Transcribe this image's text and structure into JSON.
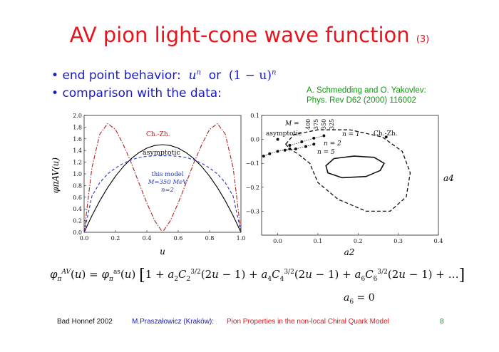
{
  "slide": {
    "title": "AV pion light-cone wave function",
    "title_number": "(3)",
    "bullet1_text": "end point behavior:",
    "bullet1_formula_a": "u",
    "bullet1_formula_a_exp": "n",
    "bullet1_or": "or",
    "bullet1_formula_b": "(1 − u)",
    "bullet1_formula_b_exp": "n",
    "bullet2_text": "comparison with the data:",
    "reference_line1": "A. Schmedding and O. Yakovlev:",
    "reference_line2": "Phys. Rev D62 (2000) 116002",
    "formula": "φπAV(u) = φπas(u) [1 + a2C2^(3/2)(2u − 1) + a4C4^(3/2)(2u − 1) + a6C6^(3/2)(2u − 1) + …]",
    "formula_note": "a6 = 0",
    "colors": {
      "title": "#e8141b",
      "bullets": "#1919c8",
      "reference": "#119911",
      "footer_middle": "#1919c8",
      "footer_right": "#e8141b"
    }
  },
  "footer": {
    "left": "Bad Honnef 2002",
    "author": "M.Praszałowicz (Kraków):",
    "talk": "Pion Properties in the non-local Chiral Quark Model",
    "page": "8"
  },
  "chart_data": [
    {
      "type": "line",
      "xlabel": "u",
      "ylabel": "φπAV(u)",
      "xlim": [
        0,
        1
      ],
      "ylim": [
        0,
        2
      ],
      "xticks": [
        "0.0",
        "0.2",
        "0.4",
        "0.6",
        "0.8",
        "1.0"
      ],
      "yticks": [
        "0.0",
        "0.2",
        "0.4",
        "0.6",
        "0.8",
        "1.0",
        "1.2",
        "1.4",
        "1.6",
        "1.8",
        "2.0"
      ],
      "series": [
        {
          "name": "asymptotic",
          "style": "solid",
          "color": "#000000"
        },
        {
          "name": "Ch.-Zh.",
          "style": "dash-dot",
          "color": "#b02020"
        },
        {
          "name": "this model",
          "style": "dashed",
          "color": "#2233bb"
        }
      ],
      "model_label": {
        "line1": "this model",
        "line2": "M=350 MeV",
        "line3": "n=2"
      },
      "x": [
        0,
        0.05,
        0.1,
        0.15,
        0.2,
        0.25,
        0.3,
        0.35,
        0.4,
        0.45,
        0.5,
        0.55,
        0.6,
        0.65,
        0.7,
        0.75,
        0.8,
        0.85,
        0.9,
        0.95,
        1
      ],
      "series_values": {
        "asymptotic": [
          0,
          0.285,
          0.54,
          0.765,
          0.96,
          1.125,
          1.26,
          1.365,
          1.44,
          1.485,
          1.5,
          1.485,
          1.44,
          1.365,
          1.26,
          1.125,
          0.96,
          0.765,
          0.54,
          0.285,
          0
        ],
        "Ch.-Zh.": [
          0,
          1.11,
          1.68,
          1.86,
          1.76,
          1.5,
          1.19,
          0.84,
          0.5,
          0.2,
          0,
          0.2,
          0.5,
          0.84,
          1.19,
          1.5,
          1.76,
          1.86,
          1.68,
          1.11,
          0
        ],
        "this model": [
          0,
          0.62,
          0.85,
          1.0,
          1.1,
          1.18,
          1.24,
          1.28,
          1.3,
          1.31,
          1.31,
          1.31,
          1.3,
          1.28,
          1.24,
          1.18,
          1.1,
          1.0,
          0.85,
          0.62,
          0
        ]
      }
    },
    {
      "type": "scatter",
      "xlabel": "a2",
      "ylabel": "a4",
      "xlim": [
        -0.04,
        0.4
      ],
      "ylim": [
        -0.4,
        0.1
      ],
      "xticks": [
        "0.0",
        "0.1",
        "0.2",
        "0.3",
        "0.4"
      ],
      "yticks": [
        "0.1",
        "0.0",
        "−0.1",
        "−0.2",
        "−0.3"
      ],
      "labels": {
        "asymptotic": "asymptotic",
        "chzh": "Ch.-Zh.",
        "M": "M =",
        "m400": "400",
        "m375": "375",
        "m350": "350",
        "m325": "325",
        "n1": "n = 1",
        "n2": "n = 2",
        "n5": "n = 5"
      },
      "points": [
        {
          "label": "asymptotic",
          "x": 0,
          "y": 0
        },
        {
          "label": "Ch.-Zh.",
          "x": 0.27,
          "y": 0.01
        },
        {
          "label": "n=1 M=400",
          "x": 0.03,
          "y": -0.025
        },
        {
          "label": "n=1 M=375",
          "x": 0.06,
          "y": -0.01
        },
        {
          "label": "n=1 M=350",
          "x": 0.09,
          "y": 0.005
        },
        {
          "label": "n=1 M=325",
          "x": 0.115,
          "y": 0.015
        },
        {
          "label": "n=2 M=400",
          "x": 0.018,
          "y": -0.045
        },
        {
          "label": "n=2 M=375",
          "x": 0.045,
          "y": -0.04
        },
        {
          "label": "n=2 M=350",
          "x": 0.07,
          "y": -0.03
        },
        {
          "label": "n=2 M=325",
          "x": 0.09,
          "y": -0.02
        },
        {
          "label": "n=5 M=400",
          "x": -0.035,
          "y": -0.07
        },
        {
          "label": "n=5 M=375",
          "x": -0.02,
          "y": -0.06
        },
        {
          "label": "n=5 M=350",
          "x": 0.0,
          "y": -0.05
        },
        {
          "label": "n=5 M=325",
          "x": 0.03,
          "y": -0.04
        }
      ],
      "contours": [
        {
          "style": "solid",
          "x": [
            0.14,
            0.12,
            0.125,
            0.16,
            0.22,
            0.255,
            0.265,
            0.24,
            0.19,
            0.14
          ],
          "y": [
            -0.08,
            -0.11,
            -0.14,
            -0.16,
            -0.155,
            -0.13,
            -0.1,
            -0.075,
            -0.07,
            -0.08
          ]
        },
        {
          "style": "dashed",
          "x": [
            0.02,
            0.04,
            0.1,
            0.18,
            0.26,
            0.31,
            0.33,
            0.32,
            0.28,
            0.22,
            0.15,
            0.1,
            0.08,
            0.05,
            0.03,
            0.02
          ],
          "y": [
            -0.02,
            0.02,
            0.04,
            0.04,
            0.01,
            -0.05,
            -0.14,
            -0.24,
            -0.3,
            -0.3,
            -0.25,
            -0.18,
            -0.1,
            -0.06,
            -0.04,
            -0.02
          ]
        }
      ]
    }
  ]
}
